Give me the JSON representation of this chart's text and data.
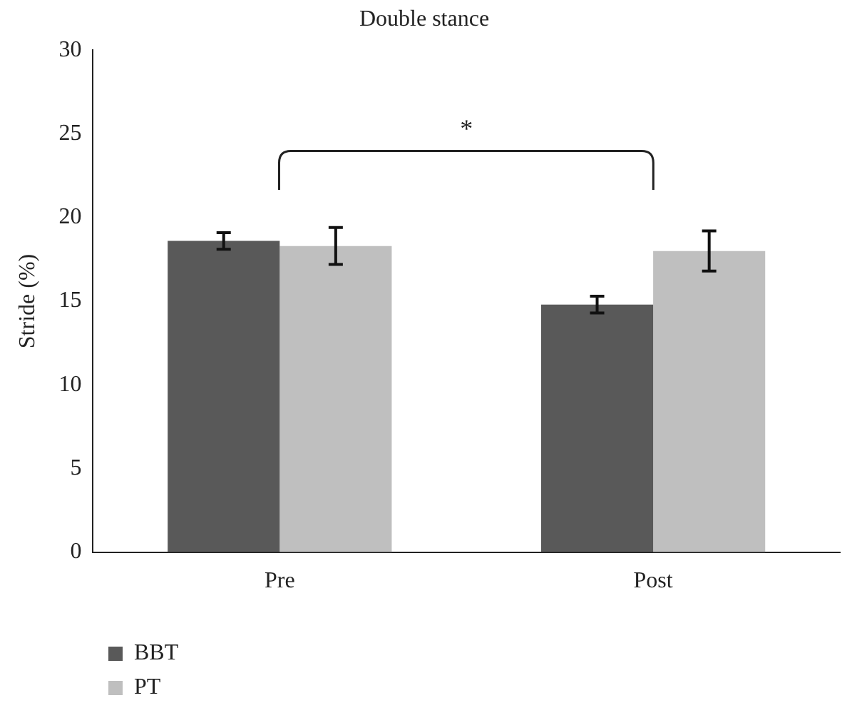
{
  "chart_data": {
    "type": "bar",
    "title": "Double stance",
    "ylabel": "Stride (%)",
    "categories": [
      "Pre",
      "Post"
    ],
    "series": [
      {
        "name": "BBT",
        "color": "#595959",
        "values": [
          18.6,
          14.8
        ],
        "errors": [
          0.5,
          0.5
        ]
      },
      {
        "name": "PT",
        "color": "#bfbfbf",
        "values": [
          18.3,
          18.0
        ],
        "errors": [
          1.1,
          1.2
        ]
      }
    ],
    "ylim": [
      0,
      30
    ],
    "yticks": [
      0,
      5,
      10,
      15,
      20,
      25,
      30
    ],
    "grid": false,
    "legend": "bottom left",
    "annotations": [
      "*"
    ]
  }
}
